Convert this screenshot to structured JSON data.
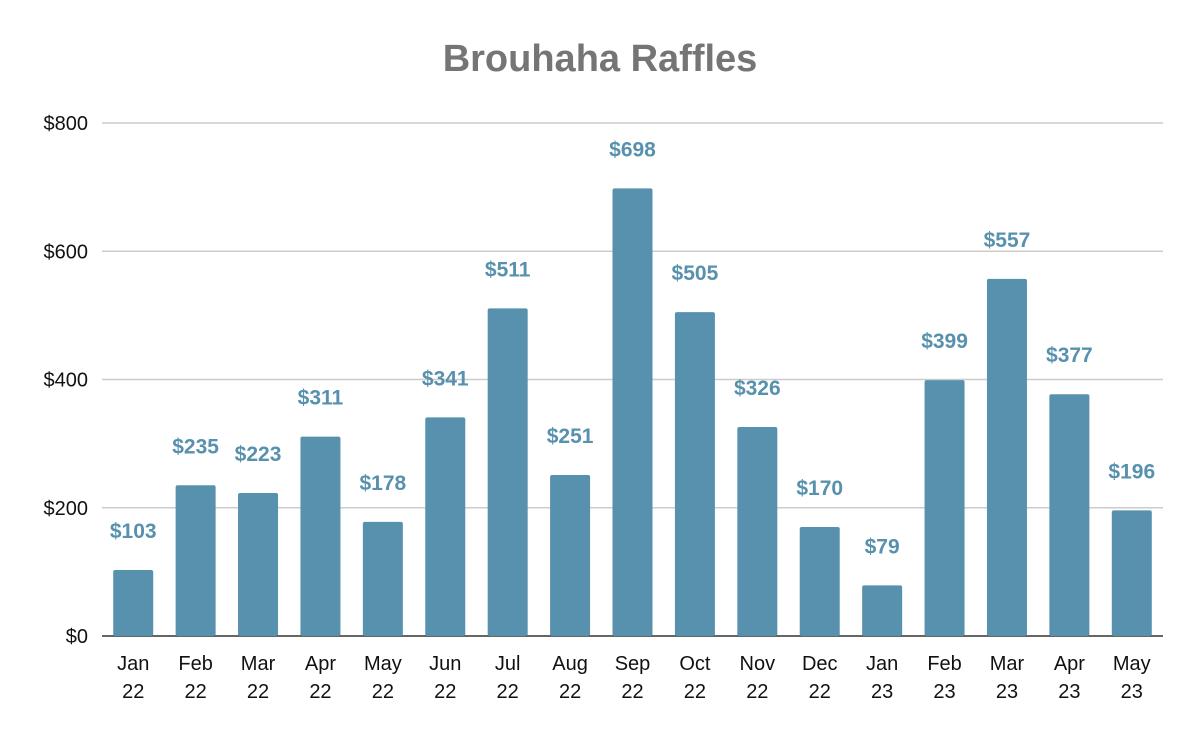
{
  "chart_data": {
    "type": "bar",
    "title": "Brouhaha Raffles",
    "xlabel": "",
    "ylabel": "",
    "categories": [
      [
        "Jan",
        "22"
      ],
      [
        "Feb",
        "22"
      ],
      [
        "Mar",
        "22"
      ],
      [
        "Apr",
        "22"
      ],
      [
        "May",
        "22"
      ],
      [
        "Jun",
        "22"
      ],
      [
        "Jul",
        "22"
      ],
      [
        "Aug",
        "22"
      ],
      [
        "Sep",
        "22"
      ],
      [
        "Oct",
        "22"
      ],
      [
        "Nov",
        "22"
      ],
      [
        "Dec",
        "22"
      ],
      [
        "Jan",
        "23"
      ],
      [
        "Feb",
        "23"
      ],
      [
        "Mar",
        "23"
      ],
      [
        "Apr",
        "23"
      ],
      [
        "May",
        "23"
      ]
    ],
    "values": [
      103,
      235,
      223,
      311,
      178,
      341,
      511,
      251,
      698,
      505,
      326,
      170,
      79,
      399,
      557,
      377,
      196
    ],
    "data_labels": [
      "$103",
      "$235",
      "$223",
      "$311",
      "$178",
      "$341",
      "$511",
      "$251",
      "$698",
      "$505",
      "$326",
      "$170",
      "$79",
      "$399",
      "$557",
      "$377",
      "$196"
    ],
    "ylim": [
      0,
      800
    ],
    "yticks": [
      0,
      200,
      400,
      600,
      800
    ],
    "ytick_labels": [
      "$0",
      "$200",
      "$400",
      "$600",
      "$800"
    ],
    "grid": true,
    "legend": "none",
    "colors": {
      "bar": "#5891ad",
      "data_label": "#5891ad",
      "title": "#757575",
      "grid": "#cccccc",
      "axis": "#333333"
    }
  }
}
